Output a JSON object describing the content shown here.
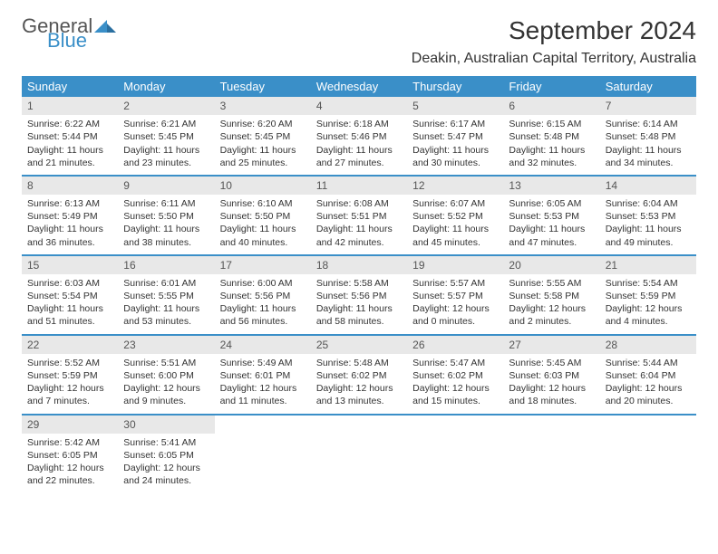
{
  "logo": {
    "general": "General",
    "blue": "Blue"
  },
  "title": "September 2024",
  "location": "Deakin, Australian Capital Territory, Australia",
  "colors": {
    "header_bg": "#3a8fc8",
    "daynum_bg": "#e8e8e8",
    "text": "#333333",
    "logo_blue": "#3a8fc8"
  },
  "days_of_week": [
    "Sunday",
    "Monday",
    "Tuesday",
    "Wednesday",
    "Thursday",
    "Friday",
    "Saturday"
  ],
  "weeks": [
    [
      {
        "n": "1",
        "sr": "Sunrise: 6:22 AM",
        "ss": "Sunset: 5:44 PM",
        "d1": "Daylight: 11 hours",
        "d2": "and 21 minutes."
      },
      {
        "n": "2",
        "sr": "Sunrise: 6:21 AM",
        "ss": "Sunset: 5:45 PM",
        "d1": "Daylight: 11 hours",
        "d2": "and 23 minutes."
      },
      {
        "n": "3",
        "sr": "Sunrise: 6:20 AM",
        "ss": "Sunset: 5:45 PM",
        "d1": "Daylight: 11 hours",
        "d2": "and 25 minutes."
      },
      {
        "n": "4",
        "sr": "Sunrise: 6:18 AM",
        "ss": "Sunset: 5:46 PM",
        "d1": "Daylight: 11 hours",
        "d2": "and 27 minutes."
      },
      {
        "n": "5",
        "sr": "Sunrise: 6:17 AM",
        "ss": "Sunset: 5:47 PM",
        "d1": "Daylight: 11 hours",
        "d2": "and 30 minutes."
      },
      {
        "n": "6",
        "sr": "Sunrise: 6:15 AM",
        "ss": "Sunset: 5:48 PM",
        "d1": "Daylight: 11 hours",
        "d2": "and 32 minutes."
      },
      {
        "n": "7",
        "sr": "Sunrise: 6:14 AM",
        "ss": "Sunset: 5:48 PM",
        "d1": "Daylight: 11 hours",
        "d2": "and 34 minutes."
      }
    ],
    [
      {
        "n": "8",
        "sr": "Sunrise: 6:13 AM",
        "ss": "Sunset: 5:49 PM",
        "d1": "Daylight: 11 hours",
        "d2": "and 36 minutes."
      },
      {
        "n": "9",
        "sr": "Sunrise: 6:11 AM",
        "ss": "Sunset: 5:50 PM",
        "d1": "Daylight: 11 hours",
        "d2": "and 38 minutes."
      },
      {
        "n": "10",
        "sr": "Sunrise: 6:10 AM",
        "ss": "Sunset: 5:50 PM",
        "d1": "Daylight: 11 hours",
        "d2": "and 40 minutes."
      },
      {
        "n": "11",
        "sr": "Sunrise: 6:08 AM",
        "ss": "Sunset: 5:51 PM",
        "d1": "Daylight: 11 hours",
        "d2": "and 42 minutes."
      },
      {
        "n": "12",
        "sr": "Sunrise: 6:07 AM",
        "ss": "Sunset: 5:52 PM",
        "d1": "Daylight: 11 hours",
        "d2": "and 45 minutes."
      },
      {
        "n": "13",
        "sr": "Sunrise: 6:05 AM",
        "ss": "Sunset: 5:53 PM",
        "d1": "Daylight: 11 hours",
        "d2": "and 47 minutes."
      },
      {
        "n": "14",
        "sr": "Sunrise: 6:04 AM",
        "ss": "Sunset: 5:53 PM",
        "d1": "Daylight: 11 hours",
        "d2": "and 49 minutes."
      }
    ],
    [
      {
        "n": "15",
        "sr": "Sunrise: 6:03 AM",
        "ss": "Sunset: 5:54 PM",
        "d1": "Daylight: 11 hours",
        "d2": "and 51 minutes."
      },
      {
        "n": "16",
        "sr": "Sunrise: 6:01 AM",
        "ss": "Sunset: 5:55 PM",
        "d1": "Daylight: 11 hours",
        "d2": "and 53 minutes."
      },
      {
        "n": "17",
        "sr": "Sunrise: 6:00 AM",
        "ss": "Sunset: 5:56 PM",
        "d1": "Daylight: 11 hours",
        "d2": "and 56 minutes."
      },
      {
        "n": "18",
        "sr": "Sunrise: 5:58 AM",
        "ss": "Sunset: 5:56 PM",
        "d1": "Daylight: 11 hours",
        "d2": "and 58 minutes."
      },
      {
        "n": "19",
        "sr": "Sunrise: 5:57 AM",
        "ss": "Sunset: 5:57 PM",
        "d1": "Daylight: 12 hours",
        "d2": "and 0 minutes."
      },
      {
        "n": "20",
        "sr": "Sunrise: 5:55 AM",
        "ss": "Sunset: 5:58 PM",
        "d1": "Daylight: 12 hours",
        "d2": "and 2 minutes."
      },
      {
        "n": "21",
        "sr": "Sunrise: 5:54 AM",
        "ss": "Sunset: 5:59 PM",
        "d1": "Daylight: 12 hours",
        "d2": "and 4 minutes."
      }
    ],
    [
      {
        "n": "22",
        "sr": "Sunrise: 5:52 AM",
        "ss": "Sunset: 5:59 PM",
        "d1": "Daylight: 12 hours",
        "d2": "and 7 minutes."
      },
      {
        "n": "23",
        "sr": "Sunrise: 5:51 AM",
        "ss": "Sunset: 6:00 PM",
        "d1": "Daylight: 12 hours",
        "d2": "and 9 minutes."
      },
      {
        "n": "24",
        "sr": "Sunrise: 5:49 AM",
        "ss": "Sunset: 6:01 PM",
        "d1": "Daylight: 12 hours",
        "d2": "and 11 minutes."
      },
      {
        "n": "25",
        "sr": "Sunrise: 5:48 AM",
        "ss": "Sunset: 6:02 PM",
        "d1": "Daylight: 12 hours",
        "d2": "and 13 minutes."
      },
      {
        "n": "26",
        "sr": "Sunrise: 5:47 AM",
        "ss": "Sunset: 6:02 PM",
        "d1": "Daylight: 12 hours",
        "d2": "and 15 minutes."
      },
      {
        "n": "27",
        "sr": "Sunrise: 5:45 AM",
        "ss": "Sunset: 6:03 PM",
        "d1": "Daylight: 12 hours",
        "d2": "and 18 minutes."
      },
      {
        "n": "28",
        "sr": "Sunrise: 5:44 AM",
        "ss": "Sunset: 6:04 PM",
        "d1": "Daylight: 12 hours",
        "d2": "and 20 minutes."
      }
    ],
    [
      {
        "n": "29",
        "sr": "Sunrise: 5:42 AM",
        "ss": "Sunset: 6:05 PM",
        "d1": "Daylight: 12 hours",
        "d2": "and 22 minutes."
      },
      {
        "n": "30",
        "sr": "Sunrise: 5:41 AM",
        "ss": "Sunset: 6:05 PM",
        "d1": "Daylight: 12 hours",
        "d2": "and 24 minutes."
      },
      null,
      null,
      null,
      null,
      null
    ]
  ]
}
